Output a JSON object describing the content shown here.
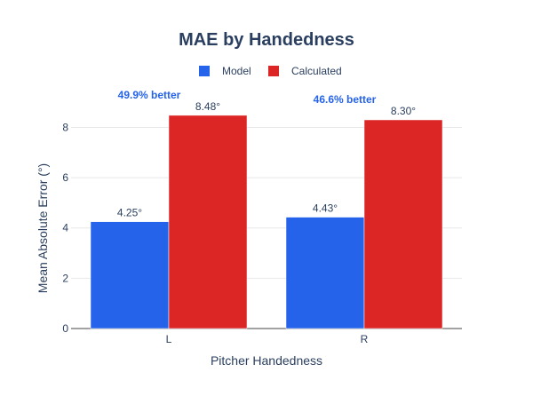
{
  "chart_data": {
    "type": "bar",
    "title": "MAE by Handedness",
    "xlabel": "Pitcher Handedness",
    "ylabel": "Mean Absolute Error (°)",
    "categories": [
      "L",
      "R"
    ],
    "ylim": [
      0,
      8.9
    ],
    "yticks": [
      0,
      2,
      4,
      6,
      8
    ],
    "legend_position": "top-center",
    "grid": true,
    "series": [
      {
        "name": "Model",
        "color": "#2563eb",
        "values": [
          4.25,
          4.43
        ],
        "labels": [
          "4.25°",
          "4.43°"
        ]
      },
      {
        "name": "Calculated",
        "color": "#dc2626",
        "values": [
          8.48,
          8.3
        ],
        "labels": [
          "8.48°",
          "8.30°"
        ]
      }
    ],
    "annotations": [
      {
        "category": "L",
        "text": "49.9% better",
        "color": "#2563eb"
      },
      {
        "category": "R",
        "text": "46.6% better",
        "color": "#2563eb"
      }
    ]
  }
}
